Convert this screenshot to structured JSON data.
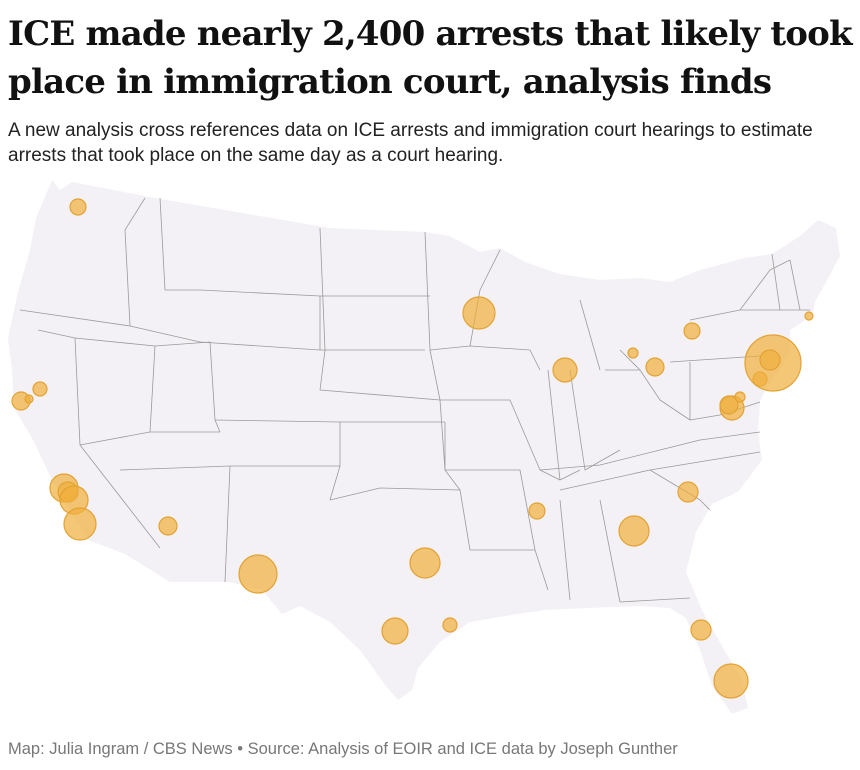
{
  "headline": "ICE made nearly 2,400 arrests that likely took place in immigration court, analysis finds",
  "dek": "A new analysis cross references data on ICE arrests and immigration court hearings to estimate arrests that took place on the same day as a court hearing.",
  "credit": "Map: Julia Ingram / CBS News • Source: Analysis of EOIR and ICE data by Joseph Gunther",
  "map_data": {
    "type": "bubble-map",
    "region": "contiguous United States",
    "bubble_color": "#f0af3c",
    "land_color": "#f3f1f5",
    "border_color": "#9a9a9a",
    "legend": "none"
  }
}
